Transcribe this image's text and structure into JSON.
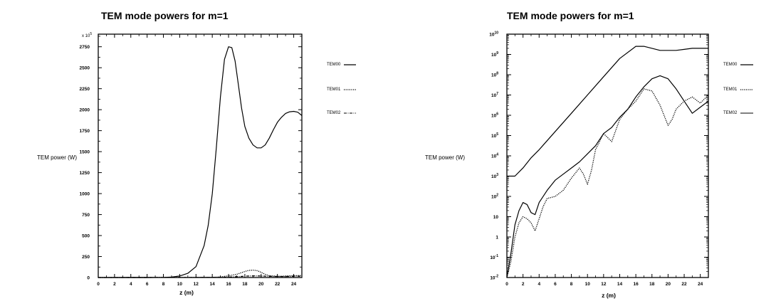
{
  "chart_data": [
    {
      "type": "line",
      "title": "TEM mode powers for m=1",
      "xlabel": "z (m)",
      "ylabel": "TEM power (W)",
      "multiplier_label": "x 10",
      "multiplier_exp": "5",
      "xlim": [
        0,
        25
      ],
      "ylim": [
        0,
        2900
      ],
      "yscale": "linear",
      "xticks": [
        "0",
        "2",
        "4",
        "6",
        "8",
        "10",
        "12",
        "14",
        "16",
        "18",
        "20",
        "22",
        "24"
      ],
      "yticks": [
        "0",
        "250",
        "500",
        "750",
        "1000",
        "1250",
        "1500",
        "1750",
        "2000",
        "2250",
        "2500",
        "2750"
      ],
      "legend": [
        "TEM00",
        "TEM01",
        "TEM02"
      ],
      "series": [
        {
          "name": "TEM00",
          "style": "solid",
          "x": [
            0,
            6,
            8,
            9,
            10,
            11,
            12,
            13,
            13.5,
            14,
            14.5,
            15,
            15.5,
            16,
            16.4,
            16.8,
            17.2,
            17.6,
            18,
            18.5,
            19,
            19.5,
            20,
            20.5,
            21,
            21.5,
            22,
            22.5,
            23,
            23.5,
            24,
            24.5,
            25
          ],
          "y": [
            0,
            0,
            2,
            6,
            18,
            50,
            130,
            380,
            620,
            1000,
            1550,
            2150,
            2600,
            2750,
            2740,
            2580,
            2300,
            2020,
            1800,
            1660,
            1580,
            1545,
            1545,
            1580,
            1660,
            1760,
            1850,
            1910,
            1955,
            1975,
            1980,
            1970,
            1930
          ]
        },
        {
          "name": "TEM01",
          "style": "dotted",
          "x": [
            0,
            14,
            15,
            16,
            17,
            17.5,
            18,
            18.5,
            19,
            19.5,
            20,
            20.5,
            21,
            22,
            23,
            24,
            25
          ],
          "y": [
            0,
            2,
            8,
            20,
            38,
            55,
            72,
            85,
            88,
            82,
            62,
            38,
            22,
            14,
            18,
            22,
            24
          ]
        },
        {
          "name": "TEM02",
          "style": "dashdot",
          "x": [
            0,
            15,
            16,
            17,
            18,
            19,
            20,
            21,
            22,
            23,
            24,
            25
          ],
          "y": [
            0,
            2,
            5,
            10,
            16,
            20,
            18,
            14,
            12,
            12,
            14,
            16
          ]
        }
      ]
    },
    {
      "type": "line",
      "title": "TEM mode powers for m=1",
      "xlabel": "z (m)",
      "ylabel": "TEM power (W)",
      "xlim": [
        0,
        25
      ],
      "ylim": [
        -2,
        10
      ],
      "yscale": "log10",
      "xticks": [
        "0",
        "2",
        "4",
        "6",
        "8",
        "10",
        "12",
        "14",
        "16",
        "18",
        "20",
        "22",
        "24"
      ],
      "yticks": [
        {
          "base": "10",
          "exp": "-2"
        },
        {
          "base": "10",
          "exp": "-1"
        },
        {
          "base": "1",
          "exp": ""
        },
        {
          "base": "10",
          "exp": ""
        },
        {
          "base": "10",
          "exp": "2"
        },
        {
          "base": "10",
          "exp": "3"
        },
        {
          "base": "10",
          "exp": "4"
        },
        {
          "base": "10",
          "exp": "5"
        },
        {
          "base": "10",
          "exp": "6"
        },
        {
          "base": "10",
          "exp": "7"
        },
        {
          "base": "10",
          "exp": "8"
        },
        {
          "base": "10",
          "exp": "9"
        },
        {
          "base": "10",
          "exp": "10"
        }
      ],
      "legend": [
        "TEM00",
        "TEM01",
        "TEM02"
      ],
      "series": [
        {
          "name": "TEM00",
          "style": "solid",
          "x": [
            0,
            1,
            2,
            3,
            4,
            6,
            8,
            10,
            12,
            14,
            16,
            17,
            18,
            19,
            20,
            21,
            22,
            23,
            24,
            25
          ],
          "y": [
            3,
            3,
            3.4,
            3.9,
            4.3,
            5.2,
            6.1,
            7,
            7.9,
            8.8,
            9.4,
            9.4,
            9.3,
            9.2,
            9.2,
            9.2,
            9.25,
            9.3,
            9.3,
            9.3
          ]
        },
        {
          "name": "TEM01",
          "style": "dotted",
          "x": [
            0,
            0.5,
            1,
            1.5,
            2,
            2.5,
            3,
            3.5,
            4,
            4.5,
            5,
            6,
            7,
            8,
            9,
            9.5,
            10,
            10.5,
            11,
            12,
            13,
            14,
            15,
            16,
            17,
            18,
            19,
            19.5,
            20,
            20.5,
            21,
            22,
            23,
            24,
            25
          ],
          "y": [
            -2,
            -1.2,
            0,
            0.7,
            1,
            0.9,
            0.7,
            0.3,
            0.9,
            1.5,
            1.9,
            2,
            2.3,
            2.9,
            3.4,
            3.1,
            2.6,
            3.3,
            4.3,
            5.1,
            4.7,
            5.8,
            6.3,
            6.7,
            7.3,
            7.2,
            6.5,
            6,
            5.5,
            5.8,
            6.3,
            6.7,
            6.9,
            6.6,
            7
          ]
        },
        {
          "name": "TEM02",
          "style": "solid",
          "x": [
            0,
            0.5,
            1,
            1.5,
            2,
            2.5,
            3,
            3.5,
            4,
            5,
            6,
            7,
            8,
            9,
            10,
            11,
            12,
            13,
            14,
            15,
            16,
            17,
            18,
            19,
            20,
            21,
            22,
            23,
            24,
            25
          ],
          "y": [
            -2,
            -0.8,
            0.6,
            1.3,
            1.7,
            1.6,
            1.2,
            1.1,
            1.7,
            2.3,
            2.8,
            3.1,
            3.4,
            3.7,
            4.1,
            4.5,
            5.1,
            5.4,
            5.9,
            6.3,
            6.9,
            7.4,
            7.8,
            7.95,
            7.8,
            7.3,
            6.7,
            6.1,
            6.4,
            6.7
          ]
        }
      ]
    }
  ]
}
